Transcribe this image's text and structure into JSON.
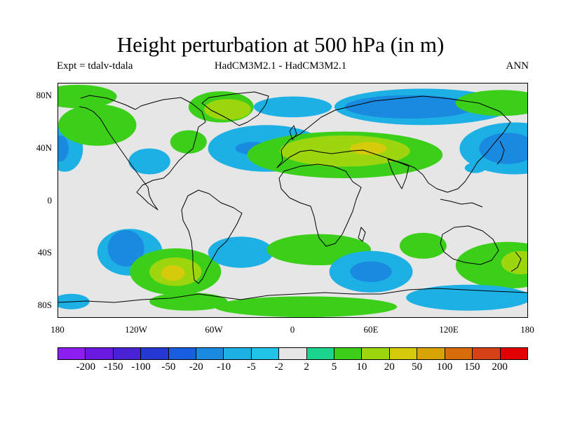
{
  "header": {
    "title": "Height perturbation at 500 hPa (in m)",
    "experiment": "Expt = tdalv-tdala",
    "models": "HadCM3M2.1 - HadCM3M2.1",
    "period": "ANN"
  },
  "map": {
    "lat_labels": [
      "80N",
      "40N",
      "0",
      "40S",
      "80S"
    ],
    "lon_labels": [
      "180",
      "120W",
      "60W",
      "0",
      "60E",
      "120E",
      "180"
    ],
    "background_color": "#e6e6e6",
    "coastline_color": "#000000"
  },
  "colorbar": {
    "labels": [
      "-200",
      "-150",
      "-100",
      "-50",
      "-20",
      "-10",
      "-5",
      "-2",
      "2",
      "5",
      "10",
      "20",
      "50",
      "100",
      "150",
      "200"
    ],
    "colors": [
      "#8c1eef",
      "#6a19e0",
      "#4a22d6",
      "#2338d2",
      "#1a5ee0",
      "#198ae0",
      "#1cb0e4",
      "#20c4e6",
      "#e6e6e6",
      "#1bd58d",
      "#3ccf1a",
      "#9dd60f",
      "#d6cb0a",
      "#d8a305",
      "#d66d0a",
      "#d64216",
      "#e00000"
    ]
  },
  "field": {
    "blobs": [
      {
        "lon": 170,
        "lat": 40,
        "rx": 42,
        "ry": 20,
        "level": -5
      },
      {
        "lon": -175,
        "lat": 40,
        "rx": 14,
        "ry": 18,
        "level": -5
      },
      {
        "lon": -178,
        "lat": 40,
        "rx": 6,
        "ry": 10,
        "level": -10
      },
      {
        "lon": 165,
        "lat": 40,
        "rx": 22,
        "ry": 12,
        "level": -10
      },
      {
        "lon": 100,
        "lat": 72,
        "rx": 68,
        "ry": 14,
        "level": -5
      },
      {
        "lon": 90,
        "lat": 72,
        "rx": 50,
        "ry": 9,
        "level": -10
      },
      {
        "lon": 0,
        "lat": 72,
        "rx": 30,
        "ry": 8,
        "level": -5
      },
      {
        "lon": -55,
        "lat": 72,
        "rx": 25,
        "ry": 12,
        "level": 5
      },
      {
        "lon": -50,
        "lat": 70,
        "rx": 18,
        "ry": 8,
        "level": 10
      },
      {
        "lon": 160,
        "lat": 75,
        "rx": 35,
        "ry": 10,
        "level": 5
      },
      {
        "lon": -150,
        "lat": 58,
        "rx": 30,
        "ry": 16,
        "level": 5
      },
      {
        "lon": -165,
        "lat": 80,
        "rx": 30,
        "ry": 9,
        "level": 5
      },
      {
        "lon": -20,
        "lat": 40,
        "rx": 45,
        "ry": 18,
        "level": -5
      },
      {
        "lon": -30,
        "lat": 40,
        "rx": 14,
        "ry": 5,
        "level": -10
      },
      {
        "lon": -110,
        "lat": 30,
        "rx": 16,
        "ry": 10,
        "level": -5
      },
      {
        "lon": 40,
        "lat": 35,
        "rx": 75,
        "ry": 18,
        "level": 5
      },
      {
        "lon": 40,
        "lat": 38,
        "rx": 50,
        "ry": 12,
        "level": 10
      },
      {
        "lon": 58,
        "lat": 40,
        "rx": 14,
        "ry": 5,
        "level": 20
      },
      {
        "lon": -80,
        "lat": 45,
        "rx": 14,
        "ry": 9,
        "level": 5
      },
      {
        "lon": 140,
        "lat": 25,
        "rx": 8,
        "ry": 4,
        "level": -5
      },
      {
        "lon": -125,
        "lat": -40,
        "rx": 25,
        "ry": 18,
        "level": -5
      },
      {
        "lon": -128,
        "lat": -37,
        "rx": 14,
        "ry": 14,
        "level": -10
      },
      {
        "lon": -90,
        "lat": -55,
        "rx": 35,
        "ry": 18,
        "level": 5
      },
      {
        "lon": -90,
        "lat": -55,
        "rx": 20,
        "ry": 11,
        "level": 10
      },
      {
        "lon": -92,
        "lat": -56,
        "rx": 9,
        "ry": 6,
        "level": 20
      },
      {
        "lon": -40,
        "lat": -40,
        "rx": 25,
        "ry": 12,
        "level": -5
      },
      {
        "lon": 20,
        "lat": -38,
        "rx": 40,
        "ry": 12,
        "level": 5
      },
      {
        "lon": 60,
        "lat": -55,
        "rx": 32,
        "ry": 16,
        "level": -5
      },
      {
        "lon": 60,
        "lat": -55,
        "rx": 16,
        "ry": 8,
        "level": -10
      },
      {
        "lon": 100,
        "lat": -35,
        "rx": 18,
        "ry": 10,
        "level": 5
      },
      {
        "lon": 165,
        "lat": -50,
        "rx": 40,
        "ry": 18,
        "level": 5
      },
      {
        "lon": 175,
        "lat": -48,
        "rx": 15,
        "ry": 9,
        "level": 10
      },
      {
        "lon": 135,
        "lat": -75,
        "rx": 48,
        "ry": 10,
        "level": -5
      },
      {
        "lon": 10,
        "lat": -82,
        "rx": 70,
        "ry": 8,
        "level": 5
      },
      {
        "lon": -80,
        "lat": -78,
        "rx": 30,
        "ry": 7,
        "level": 5
      },
      {
        "lon": -170,
        "lat": -78,
        "rx": 14,
        "ry": 6,
        "level": -5
      }
    ]
  }
}
